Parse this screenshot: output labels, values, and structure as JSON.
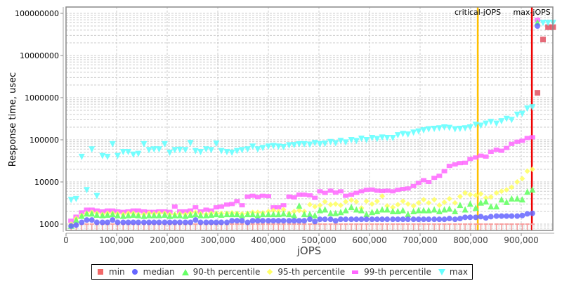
{
  "chart_data": {
    "type": "scatter",
    "title": "",
    "xlabel": "jOPS",
    "ylabel": "Response time, usec",
    "yscale": "log",
    "xlim": [
      0,
      965000
    ],
    "ylim": [
      700,
      120000000
    ],
    "x_ticks": [
      "0",
      "100,000",
      "200,000",
      "300,000",
      "400,000",
      "500,000",
      "600,000",
      "700,000",
      "800,000",
      "900,000"
    ],
    "x_tick_values": [
      0,
      100000,
      200000,
      300000,
      400000,
      500000,
      600000,
      700000,
      800000,
      900000
    ],
    "y_ticks": [
      "1000",
      "10000",
      "100000",
      "1000000",
      "10000000",
      "100000000"
    ],
    "y_tick_values": [
      1000,
      10000,
      100000,
      1000000,
      10000000,
      100000000
    ],
    "grid": true,
    "legend_position": "bottom",
    "annotations": [
      {
        "label": "critical-jOPS",
        "x": 814000,
        "color": "#ffc000"
      },
      {
        "label": "max-jOPS",
        "x": 921000,
        "color": "#ee0000"
      }
    ],
    "series": [
      {
        "name": "min",
        "color": "#f26868",
        "marker": "square"
      },
      {
        "name": "median",
        "color": "#6666ff",
        "marker": "circle"
      },
      {
        "name": "90-th percentile",
        "color": "#66ff66",
        "marker": "triangle-up"
      },
      {
        "name": "95-th percentile",
        "color": "#ffff66",
        "marker": "diamond"
      },
      {
        "name": "99-th percentile",
        "color": "#ff66ff",
        "marker": "rect"
      },
      {
        "name": "max",
        "color": "#66ffff",
        "marker": "triangle-down"
      }
    ],
    "x": [
      10000,
      20000,
      31000,
      41000,
      51000,
      61000,
      72000,
      82000,
      92000,
      102000,
      113000,
      123000,
      133000,
      143000,
      154000,
      164000,
      174000,
      184000,
      195000,
      205000,
      215000,
      225000,
      236000,
      246000,
      256000,
      266000,
      277000,
      287000,
      297000,
      307000,
      318000,
      328000,
      338000,
      348000,
      359000,
      369000,
      379000,
      389000,
      400000,
      410000,
      420000,
      430000,
      441000,
      451000,
      461000,
      471000,
      482000,
      492000,
      502000,
      512000,
      523000,
      533000,
      543000,
      553000,
      564000,
      574000,
      584000,
      594000,
      605000,
      615000,
      625000,
      635000,
      646000,
      656000,
      666000,
      676000,
      687000,
      697000,
      707000,
      717000,
      728000,
      738000,
      748000,
      758000,
      769000,
      779000,
      789000,
      799000,
      810000,
      820000,
      830000,
      840000,
      851000,
      861000,
      871000,
      881000,
      892000,
      902000,
      912000,
      922000
    ],
    "values": {
      "min": [
        1000,
        1000,
        1000,
        1000,
        1000,
        1000,
        1000,
        1000,
        1000,
        1000,
        1000,
        1000,
        1000,
        1000,
        1000,
        1000,
        1000,
        1000,
        1000,
        1000,
        1000,
        1000,
        1000,
        1000,
        1000,
        1000,
        1000,
        1000,
        1000,
        1000,
        1000,
        1000,
        1000,
        1000,
        1000,
        1000,
        1000,
        1000,
        1000,
        1000,
        1000,
        1000,
        1000,
        1000,
        1000,
        1000,
        1000,
        1000,
        1000,
        1000,
        1000,
        1000,
        1000,
        1000,
        1000,
        1000,
        1000,
        1000,
        1000,
        1000,
        1000,
        1000,
        1000,
        1000,
        1000,
        1000,
        1000,
        1000,
        1000,
        1000,
        1000,
        1000,
        1000,
        1000,
        1000,
        1000,
        1000,
        1000,
        1000,
        1000,
        1000,
        1000,
        1000,
        1000,
        1000,
        1000,
        1000,
        1000,
        1000,
        1000
      ],
      "min_extra": [
        {
          "x": 932000,
          "y": 1300000
        },
        {
          "x": 943000,
          "y": 24000000
        },
        {
          "x": 953000,
          "y": 47000000
        },
        {
          "x": 963000,
          "y": 47000000
        }
      ],
      "median": [
        900,
        950,
        1100,
        1250,
        1250,
        1100,
        1100,
        1100,
        1250,
        1100,
        1100,
        1100,
        1100,
        1100,
        1100,
        1100,
        1100,
        1100,
        1100,
        1100,
        1100,
        1100,
        1100,
        1100,
        1250,
        1100,
        1100,
        1100,
        1100,
        1100,
        1100,
        1200,
        1200,
        1200,
        1100,
        1200,
        1200,
        1200,
        1200,
        1200,
        1200,
        1200,
        1200,
        1200,
        1200,
        1200,
        1300,
        1150,
        1300,
        1300,
        1300,
        1200,
        1300,
        1300,
        1300,
        1300,
        1300,
        1300,
        1300,
        1300,
        1300,
        1300,
        1300,
        1300,
        1300,
        1300,
        1300,
        1300,
        1300,
        1300,
        1300,
        1300,
        1300,
        1350,
        1300,
        1350,
        1450,
        1450,
        1450,
        1500,
        1400,
        1500,
        1550,
        1550,
        1550,
        1550,
        1550,
        1600,
        1750,
        1800
      ],
      "median_extra": [
        {
          "x": 932000,
          "y": 50000000
        }
      ],
      "p90": [
        900,
        1250,
        1550,
        1750,
        1750,
        1650,
        1600,
        1650,
        1700,
        1600,
        1550,
        1600,
        1650,
        1600,
        1550,
        1600,
        1600,
        1600,
        1650,
        1550,
        1600,
        1600,
        1550,
        1650,
        1700,
        1600,
        1600,
        1650,
        1700,
        1650,
        1700,
        1700,
        1700,
        1600,
        1700,
        1700,
        1600,
        1700,
        1700,
        1700,
        1700,
        1750,
        1700,
        1600,
        2700,
        1700,
        1700,
        1600,
        2100,
        2200,
        1800,
        1800,
        1900,
        2100,
        2500,
        2200,
        2100,
        1700,
        1900,
        2000,
        2200,
        2200,
        2000,
        2000,
        2100,
        1700,
        2000,
        2100,
        2100,
        2100,
        2200,
        2000,
        2200,
        2300,
        2000,
        2800,
        2200,
        3000,
        2400,
        3200,
        3400,
        2600,
        2600,
        3800,
        3300,
        4000,
        4000,
        3800,
        5800,
        6500
      ],
      "p90_extra": [
        {
          "x": 932000,
          "y": 60000000
        }
      ],
      "p95": [
        1000,
        1350,
        1600,
        1800,
        1900,
        1800,
        1700,
        1800,
        1800,
        1750,
        1700,
        1800,
        1800,
        1700,
        1700,
        1800,
        1750,
        1800,
        1800,
        1700,
        1700,
        1750,
        1700,
        1800,
        1900,
        1750,
        1700,
        1800,
        1800,
        1800,
        1800,
        1850,
        1800,
        1750,
        1800,
        1900,
        1900,
        1850,
        2000,
        2100,
        2000,
        2200,
        1800,
        2000,
        2100,
        2000,
        2900,
        2600,
        2800,
        3400,
        2900,
        3000,
        2800,
        3400,
        3700,
        3400,
        2400,
        3500,
        3000,
        3500,
        4600,
        2700,
        2500,
        2900,
        3500,
        3000,
        2700,
        3200,
        3800,
        3200,
        3800,
        2800,
        3300,
        4000,
        3200,
        4500,
        5500,
        5000,
        4800,
        5200,
        4200,
        4400,
        5500,
        6000,
        6500,
        7500,
        10000,
        12000,
        18000,
        20000
      ],
      "p99": [
        1200,
        1500,
        1900,
        2200,
        2200,
        2100,
        2000,
        2100,
        2100,
        2000,
        1950,
        2000,
        2100,
        2100,
        2000,
        1950,
        1950,
        2000,
        2000,
        1950,
        2600,
        2000,
        2000,
        2100,
        2500,
        2000,
        2200,
        2100,
        2500,
        2600,
        2900,
        3000,
        3500,
        2800,
        4500,
        4700,
        4400,
        4700,
        4600,
        2500,
        2500,
        2800,
        4500,
        4300,
        5000,
        5000,
        4800,
        4200,
        6000,
        5500,
        6200,
        5600,
        6000,
        4700,
        5000,
        5500,
        6000,
        6500,
        6600,
        6200,
        6100,
        6200,
        6000,
        6500,
        6800,
        7000,
        8000,
        9500,
        11000,
        10000,
        12500,
        14000,
        18000,
        24000,
        26000,
        28000,
        28500,
        35000,
        38000,
        42000,
        40000,
        52000,
        58000,
        55000,
        64000,
        80000,
        90000,
        95000,
        110000,
        115000
      ],
      "p99_extra": [
        {
          "x": 932000,
          "y": 70000000
        }
      ],
      "max": [
        3800,
        4000,
        40000,
        6500,
        60000,
        4700,
        42000,
        40000,
        80000,
        42000,
        52000,
        52000,
        45000,
        47000,
        80000,
        58000,
        60000,
        60000,
        80000,
        50000,
        58000,
        59000,
        58000,
        85000,
        55000,
        52000,
        60000,
        58000,
        82000,
        55000,
        52000,
        50000,
        55000,
        58000,
        60000,
        70000,
        60000,
        65000,
        70000,
        72000,
        70000,
        68000,
        75000,
        76000,
        80000,
        80000,
        78000,
        85000,
        80000,
        82000,
        90000,
        84000,
        96000,
        88000,
        100000,
        95000,
        108000,
        100000,
        112000,
        106000,
        115000,
        112000,
        112000,
        130000,
        140000,
        135000,
        150000,
        160000,
        170000,
        180000,
        185000,
        190000,
        200000,
        195000,
        180000,
        185000,
        190000,
        200000,
        230000,
        220000,
        245000,
        270000,
        245000,
        280000,
        320000,
        300000,
        400000,
        420000,
        560000,
        600000
      ],
      "max_extra": [
        {
          "x": 932000,
          "y": 60000000
        },
        {
          "x": 943000,
          "y": 60000000
        },
        {
          "x": 953000,
          "y": 60000000
        },
        {
          "x": 963000,
          "y": 60000000
        }
      ]
    }
  },
  "legend": {
    "items": [
      {
        "label": "min",
        "color": "#f26868",
        "symbol": "■"
      },
      {
        "label": "median",
        "color": "#6666ff",
        "symbol": "●"
      },
      {
        "label": "90-th percentile",
        "color": "#66ff66",
        "symbol": "▲"
      },
      {
        "label": "95-th percentile",
        "color": "#ffff66",
        "symbol": "◆"
      },
      {
        "label": "99-th percentile",
        "color": "#ff66ff",
        "symbol": "▬"
      },
      {
        "label": "max",
        "color": "#66ffff",
        "symbol": "▼"
      }
    ]
  }
}
